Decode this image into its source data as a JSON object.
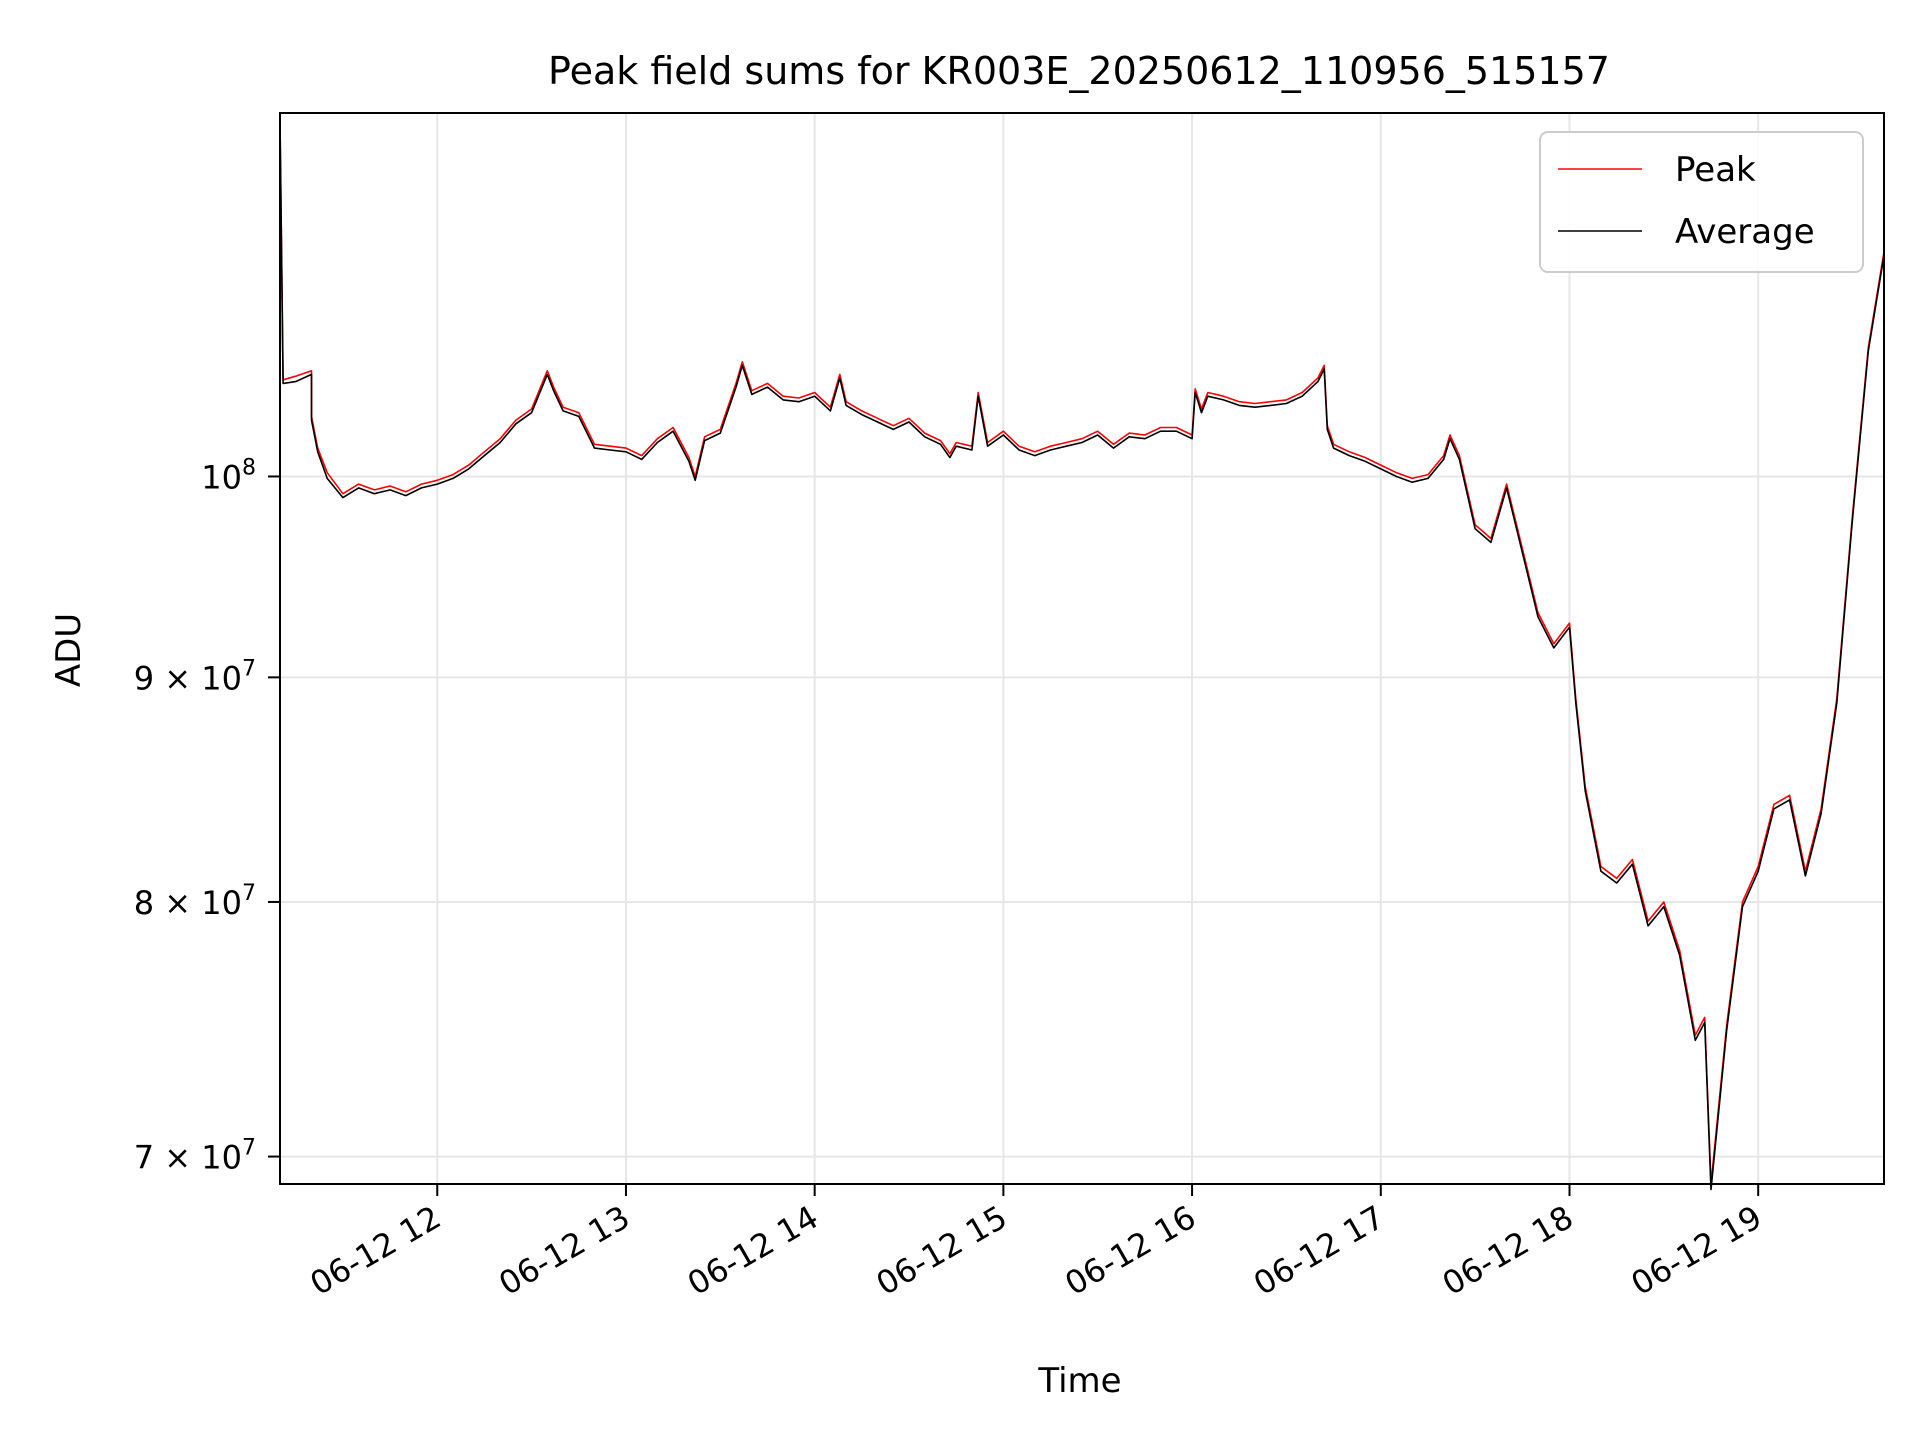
{
  "chart_data": {
    "type": "line",
    "title": "Peak field sums for KR003E_20250612_110956_515157",
    "xlabel": "Time",
    "ylabel": "ADU",
    "yscale": "log",
    "grid": true,
    "legend": "top-right",
    "xlim": [
      "2025-06-12 11:10",
      "2025-06-12 19:40"
    ],
    "ylim": [
      69000000,
      121000000
    ],
    "x_ticks": [
      {
        "value": "2025-06-12 12:00",
        "label": "06-12 12"
      },
      {
        "value": "2025-06-12 13:00",
        "label": "06-12 13"
      },
      {
        "value": "2025-06-12 14:00",
        "label": "06-12 14"
      },
      {
        "value": "2025-06-12 15:00",
        "label": "06-12 15"
      },
      {
        "value": "2025-06-12 16:00",
        "label": "06-12 16"
      },
      {
        "value": "2025-06-12 17:00",
        "label": "06-12 17"
      },
      {
        "value": "2025-06-12 18:00",
        "label": "06-12 18"
      },
      {
        "value": "2025-06-12 19:00",
        "label": "06-12 19"
      }
    ],
    "y_ticks": [
      {
        "value": 70000000,
        "mantissa": "7 × 10",
        "exp": "7"
      },
      {
        "value": 80000000,
        "mantissa": "8 × 10",
        "exp": "7"
      },
      {
        "value": 90000000,
        "mantissa": "9 × 10",
        "exp": "7"
      },
      {
        "value": 100000000,
        "mantissa": "10",
        "exp": "8"
      }
    ],
    "x": [
      "2025-06-12 11:10",
      "2025-06-12 11:11",
      "2025-06-12 11:15",
      "2025-06-12 11:20",
      "2025-06-12 11:20",
      "2025-06-12 11:22",
      "2025-06-12 11:25",
      "2025-06-12 11:30",
      "2025-06-12 11:35",
      "2025-06-12 11:40",
      "2025-06-12 11:45",
      "2025-06-12 11:50",
      "2025-06-12 11:55",
      "2025-06-12 12:00",
      "2025-06-12 12:05",
      "2025-06-12 12:10",
      "2025-06-12 12:15",
      "2025-06-12 12:20",
      "2025-06-12 12:25",
      "2025-06-12 12:30",
      "2025-06-12 12:35",
      "2025-06-12 12:37",
      "2025-06-12 12:40",
      "2025-06-12 12:45",
      "2025-06-12 12:50",
      "2025-06-12 12:55",
      "2025-06-12 13:00",
      "2025-06-12 13:05",
      "2025-06-12 13:10",
      "2025-06-12 13:15",
      "2025-06-12 13:20",
      "2025-06-12 13:22",
      "2025-06-12 13:25",
      "2025-06-12 13:30",
      "2025-06-12 13:35",
      "2025-06-12 13:37",
      "2025-06-12 13:40",
      "2025-06-12 13:45",
      "2025-06-12 13:50",
      "2025-06-12 13:55",
      "2025-06-12 14:00",
      "2025-06-12 14:05",
      "2025-06-12 14:08",
      "2025-06-12 14:10",
      "2025-06-12 14:15",
      "2025-06-12 14:20",
      "2025-06-12 14:25",
      "2025-06-12 14:30",
      "2025-06-12 14:35",
      "2025-06-12 14:40",
      "2025-06-12 14:43",
      "2025-06-12 14:45",
      "2025-06-12 14:50",
      "2025-06-12 14:52",
      "2025-06-12 14:55",
      "2025-06-12 15:00",
      "2025-06-12 15:05",
      "2025-06-12 15:10",
      "2025-06-12 15:15",
      "2025-06-12 15:20",
      "2025-06-12 15:25",
      "2025-06-12 15:30",
      "2025-06-12 15:35",
      "2025-06-12 15:40",
      "2025-06-12 15:45",
      "2025-06-12 15:50",
      "2025-06-12 15:55",
      "2025-06-12 16:00",
      "2025-06-12 16:01",
      "2025-06-12 16:03",
      "2025-06-12 16:05",
      "2025-06-12 16:10",
      "2025-06-12 16:15",
      "2025-06-12 16:20",
      "2025-06-12 16:25",
      "2025-06-12 16:30",
      "2025-06-12 16:35",
      "2025-06-12 16:40",
      "2025-06-12 16:42",
      "2025-06-12 16:43",
      "2025-06-12 16:45",
      "2025-06-12 16:50",
      "2025-06-12 16:55",
      "2025-06-12 17:00",
      "2025-06-12 17:05",
      "2025-06-12 17:10",
      "2025-06-12 17:15",
      "2025-06-12 17:20",
      "2025-06-12 17:22",
      "2025-06-12 17:25",
      "2025-06-12 17:30",
      "2025-06-12 17:35",
      "2025-06-12 17:40",
      "2025-06-12 17:45",
      "2025-06-12 17:50",
      "2025-06-12 17:55",
      "2025-06-12 18:00",
      "2025-06-12 18:02",
      "2025-06-12 18:05",
      "2025-06-12 18:10",
      "2025-06-12 18:15",
      "2025-06-12 18:20",
      "2025-06-12 18:25",
      "2025-06-12 18:30",
      "2025-06-12 18:35",
      "2025-06-12 18:40",
      "2025-06-12 18:43",
      "2025-06-12 18:45",
      "2025-06-12 18:50",
      "2025-06-12 18:55",
      "2025-06-12 19:00",
      "2025-06-12 19:05",
      "2025-06-12 19:10",
      "2025-06-12 19:15",
      "2025-06-12 19:20",
      "2025-06-12 19:25",
      "2025-06-12 19:30",
      "2025-06-12 19:35",
      "2025-06-12 19:40"
    ],
    "series": [
      {
        "name": "Peak",
        "color": "#ff0000",
        "values": [
          120500000,
          105200000,
          105400000,
          105700000,
          103200000,
          101500000,
          100200000,
          99100000,
          99600000,
          99300000,
          99500000,
          99200000,
          99600000,
          99800000,
          100100000,
          100600000,
          101300000,
          102000000,
          103000000,
          103600000,
          105700000,
          104800000,
          103700000,
          103400000,
          101700000,
          101600000,
          101500000,
          101100000,
          102000000,
          102600000,
          101000000,
          100000000,
          102100000,
          102500000,
          105000000,
          106200000,
          104600000,
          105000000,
          104300000,
          104200000,
          104500000,
          103700000,
          105500000,
          104000000,
          103500000,
          103100000,
          102700000,
          103100000,
          102300000,
          101900000,
          101200000,
          101800000,
          101600000,
          104500000,
          101800000,
          102400000,
          101600000,
          101300000,
          101600000,
          101800000,
          102000000,
          102400000,
          101700000,
          102300000,
          102200000,
          102600000,
          102600000,
          102200000,
          104700000,
          103600000,
          104500000,
          104300000,
          104000000,
          103900000,
          104000000,
          104100000,
          104500000,
          105300000,
          106000000,
          102700000,
          101700000,
          101300000,
          101000000,
          100600000,
          100200000,
          99900000,
          100100000,
          101100000,
          102200000,
          101100000,
          97500000,
          96800000,
          99600000,
          96300000,
          93100000,
          91600000,
          92600000,
          89000000,
          85000000,
          81500000,
          81000000,
          81800000,
          79200000,
          80000000,
          78000000,
          74600000,
          75300000,
          69000000,
          75000000,
          80000000,
          81500000,
          84200000,
          84600000,
          81300000,
          84000000,
          89000000,
          98000000,
          107000000,
          112500000
        ]
      },
      {
        "name": "Average",
        "color": "#000000",
        "values": [
          120500000,
          105000000,
          105100000,
          105500000,
          103000000,
          101300000,
          99900000,
          98900000,
          99400000,
          99100000,
          99300000,
          99000000,
          99400000,
          99600000,
          99900000,
          100400000,
          101100000,
          101800000,
          102800000,
          103400000,
          105500000,
          104600000,
          103500000,
          103200000,
          101500000,
          101400000,
          101300000,
          100900000,
          101800000,
          102400000,
          100800000,
          99800000,
          101900000,
          102300000,
          104800000,
          106000000,
          104400000,
          104800000,
          104100000,
          104000000,
          104300000,
          103500000,
          105300000,
          103800000,
          103300000,
          102900000,
          102500000,
          102900000,
          102100000,
          101700000,
          101000000,
          101600000,
          101400000,
          104300000,
          101600000,
          102200000,
          101400000,
          101100000,
          101400000,
          101600000,
          101800000,
          102200000,
          101500000,
          102100000,
          102000000,
          102400000,
          102400000,
          102000000,
          104500000,
          103400000,
          104300000,
          104100000,
          103800000,
          103700000,
          103800000,
          103900000,
          104300000,
          105100000,
          105800000,
          102500000,
          101500000,
          101100000,
          100800000,
          100400000,
          100000000,
          99700000,
          99900000,
          100900000,
          102000000,
          100900000,
          97300000,
          96600000,
          99400000,
          96100000,
          92900000,
          91400000,
          92400000,
          88800000,
          84800000,
          81300000,
          80800000,
          81600000,
          79000000,
          79800000,
          77800000,
          74400000,
          75100000,
          68800000,
          74800000,
          79800000,
          81300000,
          84000000,
          84400000,
          81100000,
          83800000,
          88800000,
          97800000,
          106800000,
          112300000
        ]
      }
    ]
  }
}
